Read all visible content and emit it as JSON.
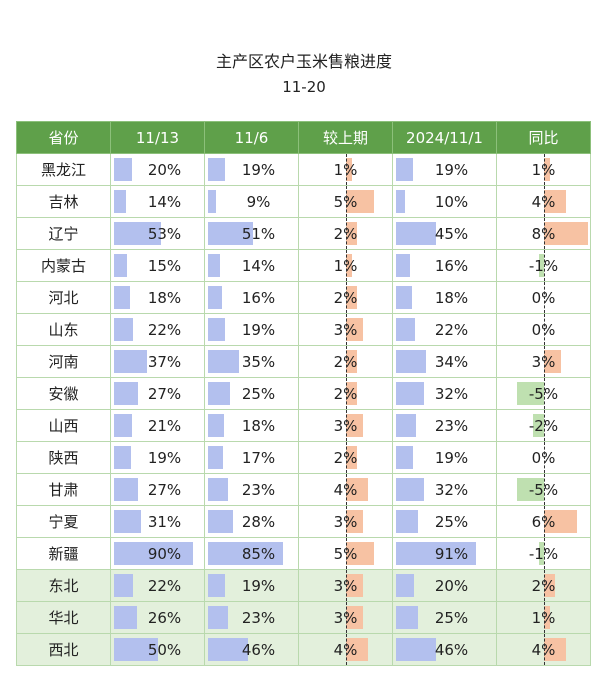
{
  "title": "主产区农户玉米售粮进度",
  "subtitle": "11-20",
  "chart_data": {
    "type": "table",
    "columns": [
      "省份",
      "11/13",
      "11/6",
      "较上期",
      "2024/11/1",
      "同比"
    ],
    "rows": [
      {
        "name": "黑龙江",
        "v1113": 20,
        "v116": 19,
        "change": 1,
        "v2024": 19,
        "yoy": 1
      },
      {
        "name": "吉林",
        "v1113": 14,
        "v116": 9,
        "change": 5,
        "v2024": 10,
        "yoy": 4
      },
      {
        "name": "辽宁",
        "v1113": 53,
        "v116": 51,
        "change": 2,
        "v2024": 45,
        "yoy": 8
      },
      {
        "name": "内蒙古",
        "v1113": 15,
        "v116": 14,
        "change": 1,
        "v2024": 16,
        "yoy": -1
      },
      {
        "name": "河北",
        "v1113": 18,
        "v116": 16,
        "change": 2,
        "v2024": 18,
        "yoy": 0
      },
      {
        "name": "山东",
        "v1113": 22,
        "v116": 19,
        "change": 3,
        "v2024": 22,
        "yoy": 0
      },
      {
        "name": "河南",
        "v1113": 37,
        "v116": 35,
        "change": 2,
        "v2024": 34,
        "yoy": 3
      },
      {
        "name": "安徽",
        "v1113": 27,
        "v116": 25,
        "change": 2,
        "v2024": 32,
        "yoy": -5
      },
      {
        "name": "山西",
        "v1113": 21,
        "v116": 18,
        "change": 3,
        "v2024": 23,
        "yoy": -2
      },
      {
        "name": "陕西",
        "v1113": 19,
        "v116": 17,
        "change": 2,
        "v2024": 19,
        "yoy": 0
      },
      {
        "name": "甘肃",
        "v1113": 27,
        "v116": 23,
        "change": 4,
        "v2024": 32,
        "yoy": -5
      },
      {
        "name": "宁夏",
        "v1113": 31,
        "v116": 28,
        "change": 3,
        "v2024": 25,
        "yoy": 6
      },
      {
        "name": "新疆",
        "v1113": 90,
        "v116": 85,
        "change": 5,
        "v2024": 91,
        "yoy": -1
      },
      {
        "name": "东北",
        "v1113": 22,
        "v116": 19,
        "change": 3,
        "v2024": 20,
        "yoy": 2,
        "region": true
      },
      {
        "name": "华北",
        "v1113": 26,
        "v116": 23,
        "change": 3,
        "v2024": 25,
        "yoy": 1,
        "region": true
      },
      {
        "name": "西北",
        "v1113": 50,
        "v116": 46,
        "change": 4,
        "v2024": 46,
        "yoy": 4,
        "region": true
      }
    ],
    "unit": "%",
    "colors": {
      "header": "#5fa04a",
      "progress_bar": "#b3c0ee",
      "positive_bar": "#f7c2a3",
      "negative_bar": "#bfe0b0",
      "region_row": "#e3f0dc"
    }
  }
}
